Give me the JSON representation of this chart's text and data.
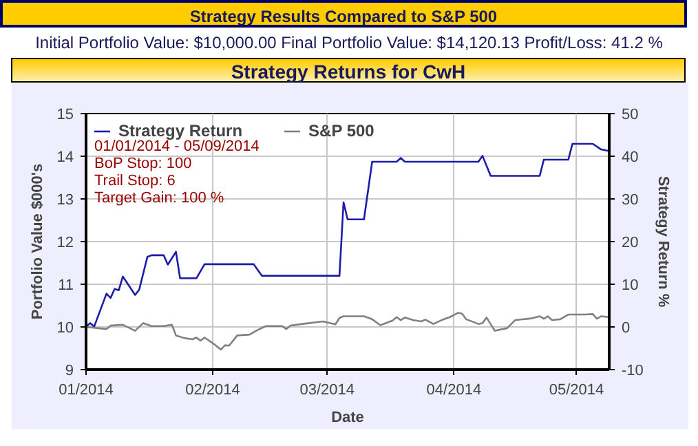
{
  "chart_data": {
    "type": "line",
    "title": "Strategy Results Compared to S&P 500",
    "subtitle": "Initial Portfolio Value: $10,000.00 Final Portfolio Value: $14,120.13 Profit/Loss: 41.2 %",
    "annotations": [
      "Strategy Returns for CwH",
      "01/01/2014 - 05/09/2014",
      "BoP Stop: 100",
      "Trail Stop: 6",
      "Target Gain: 100 %"
    ],
    "xlabel": "Date",
    "ylabel": "Portfolio Value $000's",
    "y2label": "Strategy Return %",
    "series": [
      {
        "name": "Strategy Return",
        "color": "#1c1ca8",
        "x": [
          "2014-01-01",
          "2014-01-02",
          "2014-01-03",
          "2014-01-06",
          "2014-01-07",
          "2014-01-08",
          "2014-01-09",
          "2014-01-10",
          "2014-01-13",
          "2014-01-14",
          "2014-01-16",
          "2014-01-17",
          "2014-01-20",
          "2014-01-21",
          "2014-01-23",
          "2014-01-24",
          "2014-01-28",
          "2014-01-30",
          "2014-02-11",
          "2014-02-13",
          "2014-03-04",
          "2014-03-05",
          "2014-03-06",
          "2014-03-10",
          "2014-03-12",
          "2014-03-18",
          "2014-03-19",
          "2014-03-20",
          "2014-04-07",
          "2014-04-08",
          "2014-04-10",
          "2014-04-22",
          "2014-04-23",
          "2014-04-29",
          "2014-04-30",
          "2014-05-05",
          "2014-05-07",
          "2014-05-09"
        ],
        "values": [
          10.0,
          10.09,
          10.01,
          10.78,
          10.68,
          10.89,
          10.86,
          11.18,
          10.75,
          10.87,
          11.64,
          11.68,
          11.68,
          11.46,
          11.76,
          11.14,
          11.14,
          11.47,
          11.47,
          11.2,
          11.2,
          12.92,
          12.52,
          12.52,
          13.87,
          13.87,
          13.96,
          13.87,
          13.87,
          14.01,
          13.54,
          13.54,
          13.92,
          13.92,
          14.29,
          14.29,
          14.16,
          14.12
        ]
      },
      {
        "name": "S&P 500",
        "color": "#808080",
        "x": [
          "2014-01-01",
          "2014-01-06",
          "2014-01-07",
          "2014-01-10",
          "2014-01-13",
          "2014-01-15",
          "2014-01-17",
          "2014-01-20",
          "2014-01-22",
          "2014-01-23",
          "2014-01-25",
          "2014-01-27",
          "2014-01-28",
          "2014-01-29",
          "2014-01-30",
          "2014-02-01",
          "2014-02-03",
          "2014-02-04",
          "2014-02-05",
          "2014-02-07",
          "2014-02-10",
          "2014-02-12",
          "2014-02-14",
          "2014-02-18",
          "2014-02-19",
          "2014-02-20",
          "2014-02-23",
          "2014-02-28",
          "2014-03-03",
          "2014-03-04",
          "2014-03-05",
          "2014-03-10",
          "2014-03-12",
          "2014-03-14",
          "2014-03-17",
          "2014-03-18",
          "2014-03-19",
          "2014-03-20",
          "2014-03-22",
          "2014-03-24",
          "2014-03-25",
          "2014-03-27",
          "2014-03-29",
          "2014-03-31",
          "2014-04-02",
          "2014-04-03",
          "2014-04-04",
          "2014-04-07",
          "2014-04-08",
          "2014-04-09",
          "2014-04-11",
          "2014-04-14",
          "2014-04-16",
          "2014-04-20",
          "2014-04-22",
          "2014-04-23",
          "2014-04-24",
          "2014-04-25",
          "2014-04-27",
          "2014-04-29",
          "2014-05-03",
          "2014-05-05",
          "2014-05-06",
          "2014-05-07",
          "2014-05-09"
        ],
        "values": [
          10.0,
          9.95,
          10.03,
          10.05,
          9.91,
          10.09,
          10.02,
          10.02,
          10.05,
          9.8,
          9.74,
          9.71,
          9.75,
          9.68,
          9.75,
          9.62,
          9.47,
          9.57,
          9.56,
          9.8,
          9.82,
          9.93,
          10.02,
          10.02,
          9.95,
          10.03,
          10.07,
          10.13,
          10.06,
          10.21,
          10.25,
          10.25,
          10.18,
          10.04,
          10.15,
          10.23,
          10.16,
          10.22,
          10.16,
          10.13,
          10.17,
          10.07,
          10.16,
          10.23,
          10.33,
          10.31,
          10.18,
          10.07,
          10.09,
          10.22,
          9.91,
          9.97,
          10.16,
          10.2,
          10.25,
          10.19,
          10.25,
          10.16,
          10.18,
          10.29,
          10.29,
          10.3,
          10.19,
          10.25,
          10.23
        ]
      }
    ],
    "xlim": [
      "2014-01-01",
      "2014-05-09"
    ],
    "xticks": [
      {
        "value": "2014-01-01",
        "label": "01/2014"
      },
      {
        "value": "2014-02-01",
        "label": "02/2014"
      },
      {
        "value": "2014-03-01",
        "label": "03/2014"
      },
      {
        "value": "2014-04-01",
        "label": "04/2014"
      },
      {
        "value": "2014-05-01",
        "label": "05/2014"
      }
    ],
    "ylim": [
      9,
      15
    ],
    "yticks": [
      9,
      10,
      11,
      12,
      13,
      14,
      15
    ],
    "y2lim": [
      -10,
      50
    ],
    "y2ticks": [
      -10,
      0,
      10,
      20,
      30,
      40,
      50
    ],
    "grid": true,
    "legend": "top left"
  }
}
